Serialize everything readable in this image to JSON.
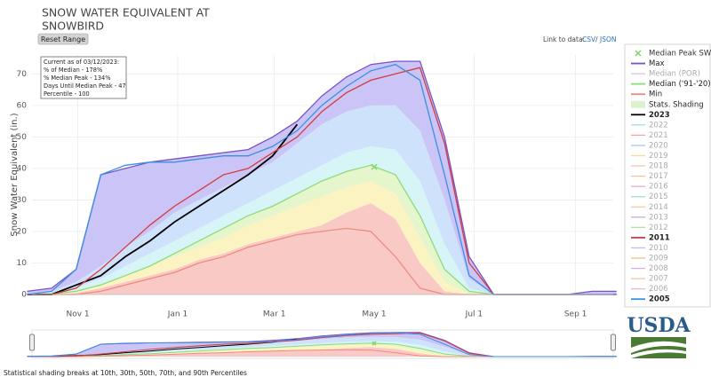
{
  "chart_data": {
    "type": "line",
    "title_lines": [
      "SNOW WATER EQUIVALENT AT",
      "SNOWBIRD"
    ],
    "reset_button": "Reset Range",
    "link_label": "Link to data:",
    "links": [
      "CSV",
      "/",
      "JSON"
    ],
    "info_box": [
      "Current as of 03/12/2023:",
      "% of Median - 178%",
      "% Median Peak - 134%",
      "Days Until Median Peak - 47",
      "Percentile - 100"
    ],
    "y_label": "Snow Water Equivalent (in.)",
    "footer": "Statistical shading breaks at 10th, 30th, 50th, 70th, and 90th Percentiles",
    "logo": "USDA",
    "grid": true,
    "xlim": [
      3,
      358
    ],
    "ylim": [
      0,
      76
    ],
    "xticks": [
      {
        "value": 31,
        "label": "Nov 1"
      },
      {
        "value": 92,
        "label": "Jan 1"
      },
      {
        "value": 151,
        "label": "Mar 1"
      },
      {
        "value": 212,
        "label": "May 1"
      },
      {
        "value": 273,
        "label": "Jul 1"
      },
      {
        "value": 335,
        "label": "Sep 1"
      }
    ],
    "yticks": [
      0,
      10,
      20,
      30,
      40,
      50,
      60,
      70
    ],
    "x": [
      0,
      15,
      30,
      45,
      60,
      75,
      90,
      105,
      120,
      135,
      150,
      165,
      180,
      195,
      210,
      225,
      240,
      255,
      270,
      285,
      300,
      315,
      330,
      345,
      360
    ],
    "median_peak": {
      "name": "Median Peak SWE",
      "color": "#7bd96b",
      "x": 212,
      "value": 40.5
    },
    "series": [
      {
        "name": "Max",
        "color": "#7a52c7",
        "fill": "#cbc4f6",
        "visible": true,
        "values": [
          1,
          2,
          8,
          38,
          40,
          42,
          43,
          44,
          45,
          46,
          50,
          55,
          63,
          69,
          73,
          74,
          74,
          50,
          12,
          0,
          0,
          0,
          0,
          1,
          1
        ]
      },
      {
        "name": "Median (POR)",
        "color": "#cccccc",
        "visible": false
      },
      {
        "name": "Median ('91-'20)",
        "color": "#8bdc7a",
        "visible": true,
        "values": [
          0,
          0.2,
          1,
          3,
          6,
          9,
          13,
          17,
          21,
          25,
          28,
          32,
          36,
          39,
          41,
          38,
          25,
          8,
          1,
          0,
          0,
          0,
          0,
          0,
          0
        ]
      },
      {
        "name": "Min",
        "color": "#ef8a80",
        "visible": true,
        "values": [
          0,
          0,
          0,
          1,
          3,
          5,
          7,
          10,
          12,
          15,
          17,
          19,
          20,
          21,
          20,
          12,
          2,
          0,
          0,
          0,
          0,
          0,
          0,
          0,
          0
        ]
      },
      {
        "name": "Stats. Shading",
        "kind": "shading",
        "color": "#d8f0c8",
        "visible": true,
        "percentiles": [
          {
            "color": "#f9c9c6",
            "values": [
              0,
              0,
              0.5,
              2,
              4,
              6,
              8,
              11,
              13,
              16,
              18,
              20,
              22,
              26,
              29,
              24,
              10,
              1,
              0,
              0,
              0,
              0,
              0,
              0,
              0
            ]
          },
          {
            "color": "#fcf3c2",
            "values": [
              0,
              0,
              1,
              3,
              6,
              9,
              12,
              15,
              18,
              22,
              25,
              28,
              31,
              34,
              36,
              32,
              18,
              4,
              0,
              0,
              0,
              0,
              0,
              0,
              0
            ]
          },
          {
            "color": "#e6f6cc",
            "values": [
              0,
              0.2,
              1,
              3,
              6,
              9,
              13,
              17,
              21,
              25,
              28,
              32,
              36,
              39,
              41,
              38,
              25,
              8,
              1,
              0,
              0,
              0,
              0,
              0,
              0
            ]
          },
          {
            "color": "#d7f4f6",
            "values": [
              0,
              0.5,
              2,
              5,
              9,
              13,
              17,
              21,
              25,
              29,
              33,
              37,
              41,
              45,
              47,
              46,
              36,
              16,
              2,
              0,
              0,
              0,
              0,
              0,
              0
            ]
          },
          {
            "color": "#cfe2fb",
            "values": [
              0,
              1,
              4,
              9,
              15,
              20,
              26,
              30,
              34,
              38,
              42,
              48,
              54,
              58,
              60,
              60,
              52,
              30,
              5,
              0,
              0,
              0,
              0,
              0,
              0
            ]
          }
        ]
      },
      {
        "name": "2023",
        "color": "#000000",
        "visible": true,
        "values": [
          0,
          0,
          3,
          6,
          12,
          17,
          23,
          28,
          33,
          38,
          44,
          54,
          null,
          null,
          null,
          null,
          null,
          null,
          null,
          null,
          null,
          null,
          null,
          null,
          null
        ]
      },
      {
        "name": "2022",
        "color": "#a6d8e8",
        "visible": false
      },
      {
        "name": "2021",
        "color": "#f4a6a6",
        "visible": false
      },
      {
        "name": "2020",
        "color": "#9ec9f0",
        "visible": false
      },
      {
        "name": "2019",
        "color": "#f8d9a0",
        "visible": false
      },
      {
        "name": "2018",
        "color": "#f6c4b0",
        "visible": false
      },
      {
        "name": "2017",
        "color": "#f4c0a0",
        "visible": false
      },
      {
        "name": "2016",
        "color": "#e8b0c8",
        "visible": false
      },
      {
        "name": "2015",
        "color": "#a8d8e0",
        "visible": false
      },
      {
        "name": "2014",
        "color": "#f0d0a0",
        "visible": false
      },
      {
        "name": "2013",
        "color": "#c8a8e0",
        "visible": false
      },
      {
        "name": "2012",
        "color": "#b8e0a0",
        "visible": false
      },
      {
        "name": "2011",
        "color": "#d23c3c",
        "visible": true,
        "values": [
          0,
          0,
          2,
          8,
          15,
          22,
          28,
          33,
          38,
          40,
          45,
          50,
          58,
          64,
          68,
          70,
          72,
          48,
          10,
          0,
          0,
          0,
          0,
          0,
          0
        ]
      },
      {
        "name": "2010",
        "color": "#c0c0f0",
        "visible": false
      },
      {
        "name": "2009",
        "color": "#f0c080",
        "visible": false
      },
      {
        "name": "2008",
        "color": "#d0b0e8",
        "visible": false
      },
      {
        "name": "2007",
        "color": "#f0c8a8",
        "visible": false
      },
      {
        "name": "2006",
        "color": "#f4b8c0",
        "visible": false
      },
      {
        "name": "2005",
        "color": "#3c8fe0",
        "visible": true,
        "values": [
          0,
          1,
          8,
          38,
          41,
          42,
          42,
          43,
          44,
          44,
          47,
          52,
          60,
          66,
          71,
          73,
          68,
          38,
          6,
          0,
          0,
          0,
          0,
          0,
          0
        ]
      }
    ]
  }
}
